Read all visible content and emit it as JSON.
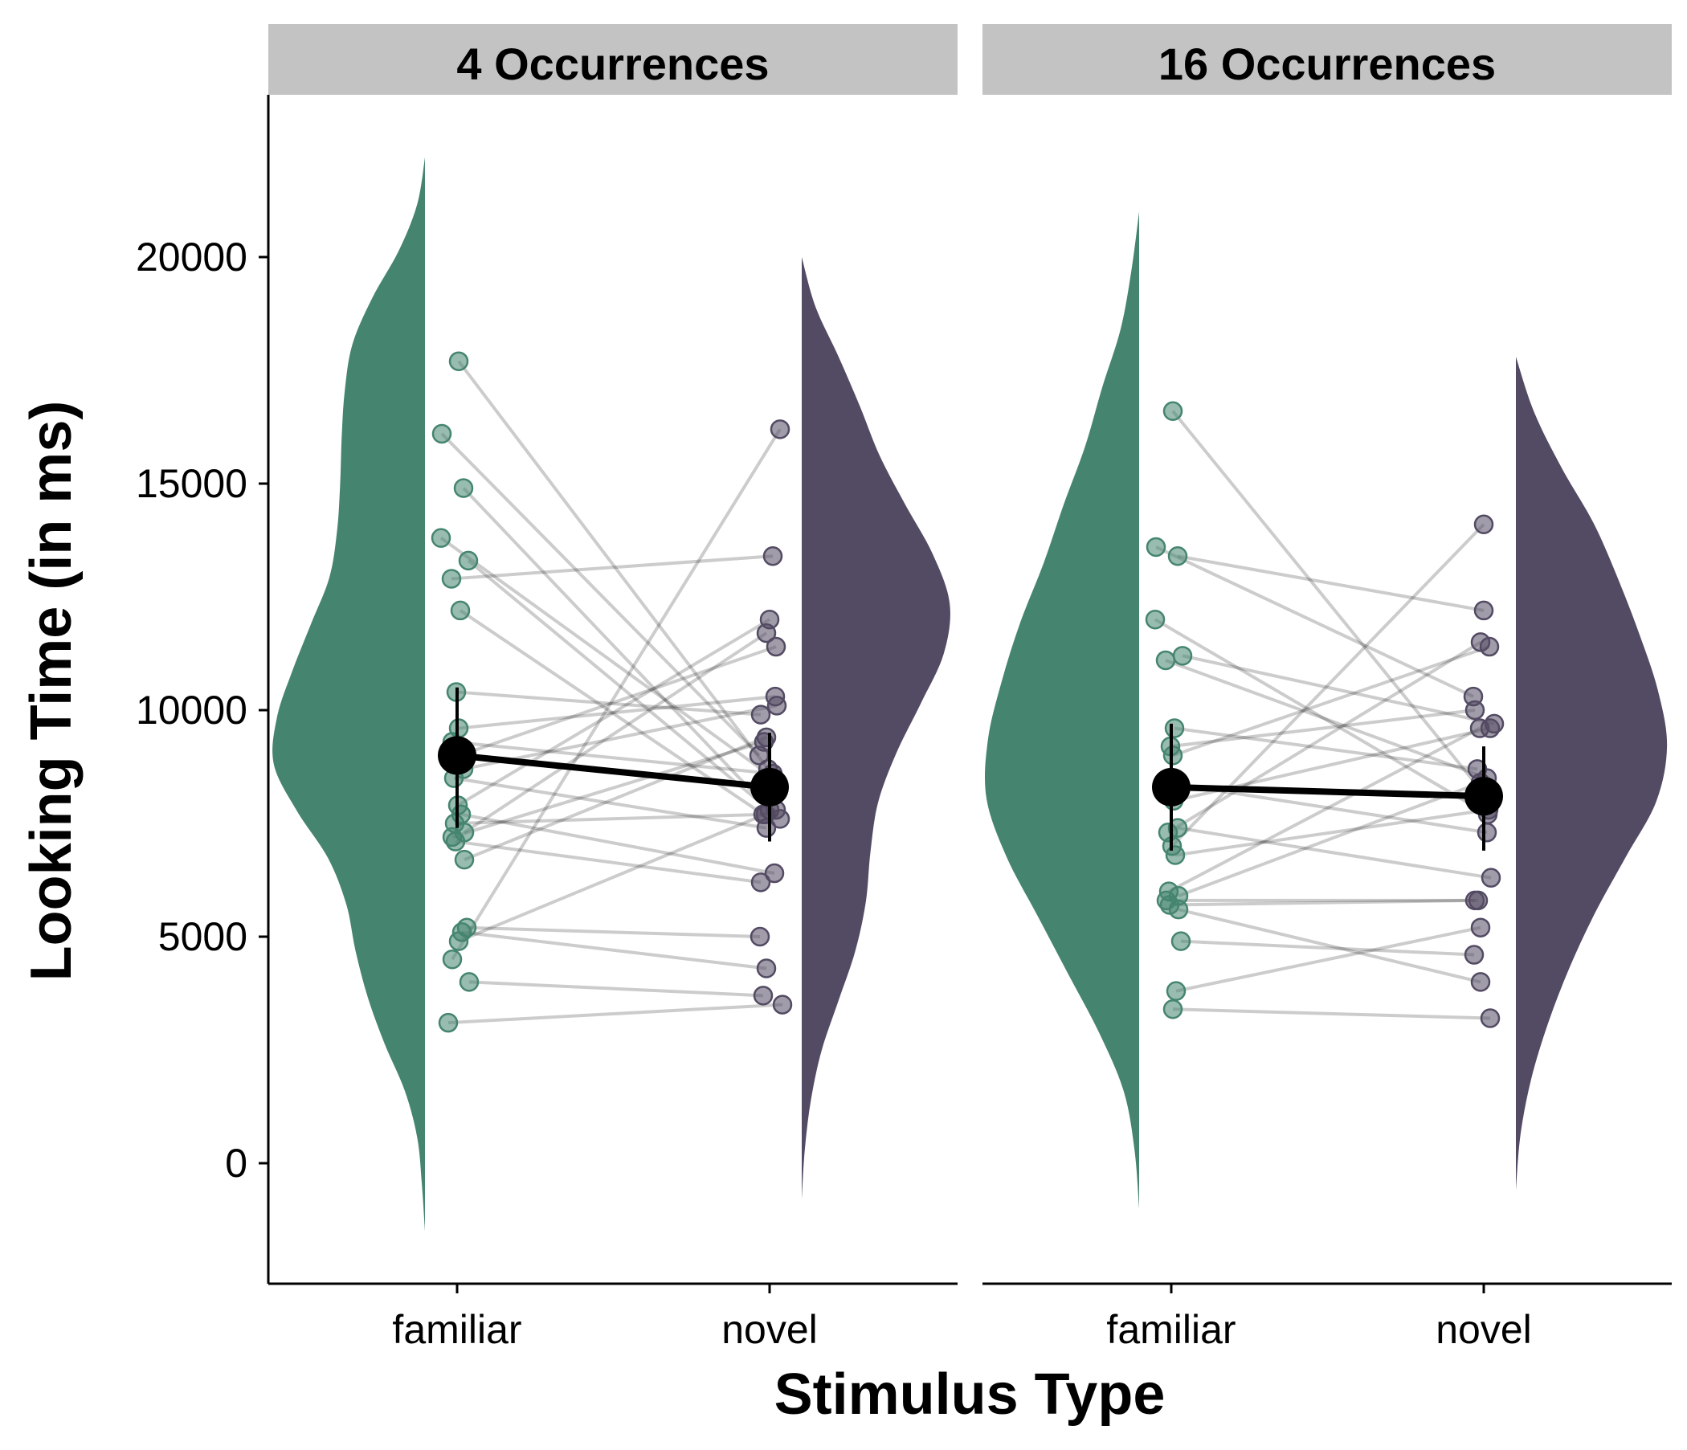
{
  "chart_data": {
    "type": "violin+scatter",
    "xlabel": "Stimulus Type",
    "ylabel": "Looking Time (in ms)",
    "ylim": [
      -2700,
      23500
    ],
    "yticks": [
      0,
      5000,
      10000,
      15000,
      20000
    ],
    "categories": [
      "familiar",
      "novel"
    ],
    "colors": {
      "familiar": "#458570",
      "novel": "#534a63",
      "paired_lines": "#000000",
      "mean": "#000000",
      "strip_bg": "#c3c3c3"
    },
    "legend": "none",
    "grid": false,
    "panels": [
      {
        "title": "4 Occurrences",
        "violin_range": {
          "familiar": [
            -1500,
            22200
          ],
          "novel": [
            -800,
            20000
          ]
        },
        "violin_density": {
          "familiar": [
            0.0,
            0.02,
            0.05,
            0.13,
            0.26,
            0.37,
            0.45,
            0.51,
            0.63,
            0.83,
            0.98,
            0.96,
            0.86,
            0.74,
            0.62,
            0.57,
            0.55,
            0.54,
            0.52,
            0.47,
            0.34,
            0.17,
            0.05,
            0.0
          ],
          "novel": [
            0.0,
            0.02,
            0.06,
            0.13,
            0.24,
            0.35,
            0.42,
            0.45,
            0.5,
            0.62,
            0.78,
            0.93,
            0.97,
            0.86,
            0.68,
            0.51,
            0.38,
            0.24,
            0.09,
            0.0
          ]
        },
        "participants": [
          [
            17700,
            8700
          ],
          [
            16100,
            9000
          ],
          [
            14900,
            7800
          ],
          [
            13800,
            8500
          ],
          [
            13300,
            7600
          ],
          [
            12900,
            13400
          ],
          [
            12200,
            7700
          ],
          [
            10400,
            9900
          ],
          [
            9600,
            10300
          ],
          [
            9300,
            8600
          ],
          [
            9000,
            11400
          ],
          [
            8700,
            10100
          ],
          [
            8500,
            7400
          ],
          [
            7900,
            12000
          ],
          [
            7700,
            6400
          ],
          [
            7500,
            7700
          ],
          [
            7300,
            11700
          ],
          [
            7200,
            9300
          ],
          [
            7100,
            6200
          ],
          [
            6700,
            9400
          ],
          [
            5200,
            5000
          ],
          [
            5100,
            4300
          ],
          [
            4900,
            7800
          ],
          [
            4500,
            16200
          ],
          [
            4000,
            3700
          ],
          [
            3100,
            3500
          ]
        ],
        "mean": {
          "familiar": 9000,
          "novel": 8300
        },
        "error_bar": {
          "familiar": [
            7400,
            10500
          ],
          "novel": [
            7100,
            9500
          ]
        }
      },
      {
        "title": "16 Occurrences",
        "violin_range": {
          "familiar": [
            -1000,
            21000
          ],
          "novel": [
            -600,
            17800
          ]
        },
        "violin_density": {
          "familiar": [
            0.0,
            0.03,
            0.1,
            0.26,
            0.46,
            0.66,
            0.86,
            0.99,
            0.98,
            0.89,
            0.77,
            0.62,
            0.49,
            0.35,
            0.24,
            0.12,
            0.05,
            0.0
          ],
          "novel": [
            0.0,
            0.03,
            0.1,
            0.21,
            0.35,
            0.52,
            0.72,
            0.92,
            0.99,
            0.93,
            0.81,
            0.67,
            0.51,
            0.3,
            0.12,
            0.0
          ]
        },
        "participants": [
          [
            16600,
            8200
          ],
          [
            13600,
            10300
          ],
          [
            13400,
            12200
          ],
          [
            12000,
            7700
          ],
          [
            11200,
            9700
          ],
          [
            11100,
            8500
          ],
          [
            9600,
            8700
          ],
          [
            9200,
            10000
          ],
          [
            9000,
            11400
          ],
          [
            8400,
            7300
          ],
          [
            8000,
            9600
          ],
          [
            7400,
            6300
          ],
          [
            7300,
            11500
          ],
          [
            7000,
            14100
          ],
          [
            6800,
            7800
          ],
          [
            6000,
            9600
          ],
          [
            5900,
            8400
          ],
          [
            5800,
            5800
          ],
          [
            5700,
            5800
          ],
          [
            5600,
            4000
          ],
          [
            4900,
            4600
          ],
          [
            3800,
            5200
          ],
          [
            3400,
            3200
          ]
        ],
        "mean": {
          "familiar": 8300,
          "novel": 8100
        },
        "error_bar": {
          "familiar": [
            6900,
            9700
          ],
          "novel": [
            6900,
            9200
          ]
        }
      }
    ]
  }
}
